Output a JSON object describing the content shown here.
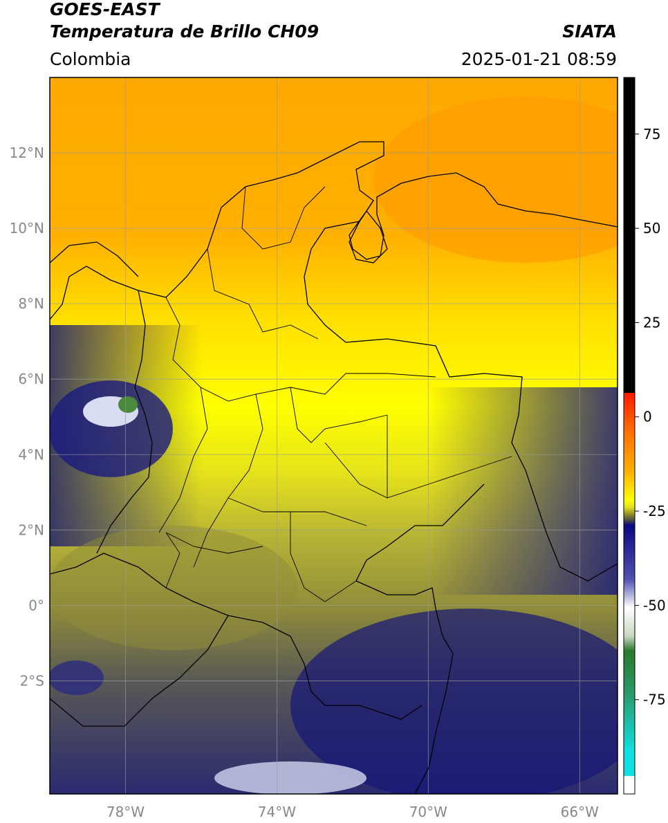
{
  "header": {
    "satellite": "GOES-EAST",
    "product": "Temperatura de Brillo CH09",
    "region": "Colombia",
    "agency": "SIATA",
    "datetime": "2025-01-21 08:59"
  },
  "map": {
    "lon_range": [
      -80,
      -65
    ],
    "lat_range": [
      -5,
      14
    ],
    "lat_ticks": [
      {
        "value": 12,
        "label": "12°N"
      },
      {
        "value": 10,
        "label": "10°N"
      },
      {
        "value": 8,
        "label": "8°N"
      },
      {
        "value": 6,
        "label": "6°N"
      },
      {
        "value": 4,
        "label": "4°N"
      },
      {
        "value": 2,
        "label": "2°N"
      },
      {
        "value": 0,
        "label": "0°"
      },
      {
        "value": -2,
        "label": "2°S"
      }
    ],
    "lon_ticks": [
      {
        "value": -78,
        "label": "78°W"
      },
      {
        "value": -74,
        "label": "74°W"
      },
      {
        "value": -70,
        "label": "70°W"
      },
      {
        "value": -66,
        "label": "66°W"
      }
    ]
  },
  "colorbar": {
    "range": [
      -100,
      90
    ],
    "ticks": [
      {
        "value": 75,
        "label": "75"
      },
      {
        "value": 50,
        "label": "50"
      },
      {
        "value": 25,
        "label": "25"
      },
      {
        "value": 0,
        "label": "0"
      },
      {
        "value": -25,
        "label": "-25"
      },
      {
        "value": -50,
        "label": "-50"
      },
      {
        "value": -75,
        "label": "-75"
      }
    ],
    "colors": {
      "black": "#000000",
      "red": "#ff1a00",
      "orange": "#ff9a00",
      "yellow": "#ffff00",
      "olive": "#8c8c28",
      "gray": "#3a3a50",
      "navy": "#0a0a80",
      "white": "#ffffff",
      "green": "#2a7a2a",
      "cyan": "#10e0e0"
    }
  }
}
